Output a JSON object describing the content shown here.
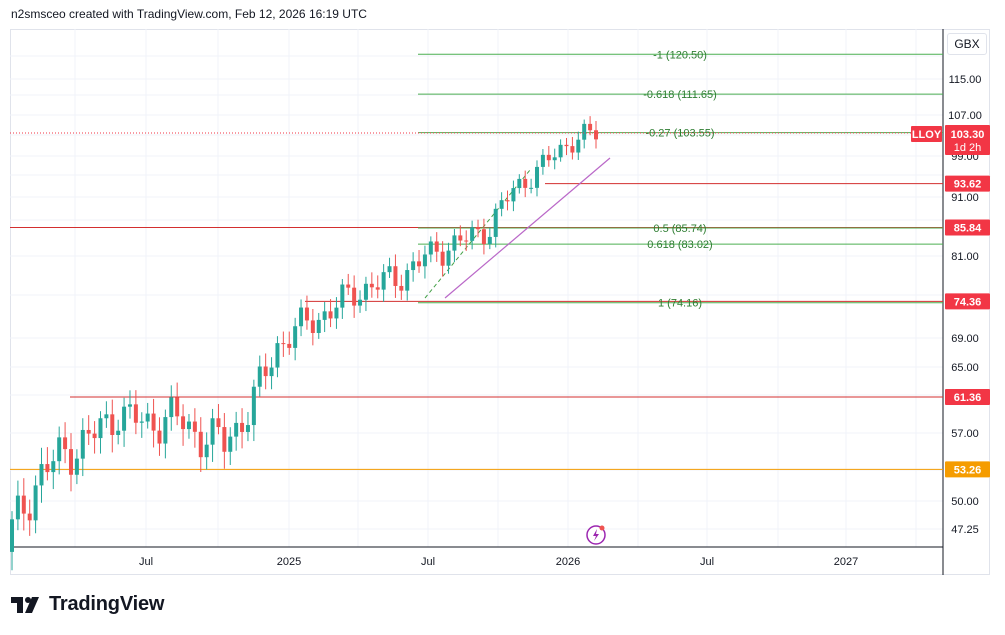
{
  "header": {
    "attribution": "n2smsceo created with TradingView.com, Feb 12, 2026 16:19 UTC"
  },
  "currency": "GBX",
  "footer": {
    "brand": "TradingView"
  },
  "colors": {
    "up": "#26a69a",
    "down": "#ef5350",
    "fib": "#4caf50",
    "level": "#d32f2f",
    "support": "#f59c00",
    "trend": "#ba68c8",
    "price_tag": "#f23645"
  },
  "chart_data": {
    "type": "candlestick",
    "symbol": "LLOY",
    "currency": "GBX",
    "last_price": "103.30",
    "countdown": "1d 2h",
    "y_ticks": [
      "115.00",
      "107.00",
      "99.00",
      "91.00",
      "81.00",
      "69.00",
      "65.00",
      "57.00",
      "50.00",
      "47.25"
    ],
    "x_ticks": [
      "Jul",
      "2025",
      "Jul",
      "2026",
      "Jul",
      "2027"
    ],
    "fib_levels": [
      {
        "label": "-1 (120.50)",
        "value": 120.5
      },
      {
        "label": "-0.618 (111.65)",
        "value": 111.65
      },
      {
        "label": "-0.27 (103.55)",
        "value": 103.55
      },
      {
        "label": "0.5 (85.74)",
        "value": 85.74
      },
      {
        "label": "0.618 (83.02)",
        "value": 83.02
      },
      {
        "label": "1 (74.16)",
        "value": 74.16
      }
    ],
    "horizontal_levels": [
      {
        "label": "93.62",
        "value": 93.62
      },
      {
        "label": "85.84",
        "value": 85.84
      },
      {
        "label": "74.36",
        "value": 74.36
      },
      {
        "label": "61.36",
        "value": 61.36
      },
      {
        "label": "53.26",
        "value": 53.26
      }
    ],
    "candles": [
      {
        "date": "2024-04",
        "close": 47.0
      },
      {
        "date": "2024-05",
        "close": 52.5
      },
      {
        "date": "2024-06",
        "close": 55.0
      },
      {
        "date": "2024-07",
        "close": 56.5
      },
      {
        "date": "2024-08",
        "close": 59.5
      },
      {
        "date": "2024-09",
        "close": 58.0
      },
      {
        "date": "2024-10",
        "close": 59.0
      },
      {
        "date": "2024-11",
        "close": 57.0
      },
      {
        "date": "2024-12",
        "close": 56.0
      },
      {
        "date": "2025-01",
        "close": 60.0
      },
      {
        "date": "2025-02",
        "close": 68.0
      },
      {
        "date": "2025-03",
        "close": 71.0
      },
      {
        "date": "2025-04",
        "close": 73.0
      },
      {
        "date": "2025-05",
        "close": 76.0
      },
      {
        "date": "2025-06",
        "close": 77.0
      },
      {
        "date": "2025-07",
        "close": 79.0
      },
      {
        "date": "2025-08",
        "close": 82.0
      },
      {
        "date": "2025-09",
        "close": 83.5
      },
      {
        "date": "2025-10",
        "close": 86.0
      },
      {
        "date": "2025-11",
        "close": 93.0
      },
      {
        "date": "2025-12",
        "close": 97.0
      },
      {
        "date": "2026-01",
        "close": 102.0
      },
      {
        "date": "2026-02",
        "close": 103.3
      }
    ]
  }
}
